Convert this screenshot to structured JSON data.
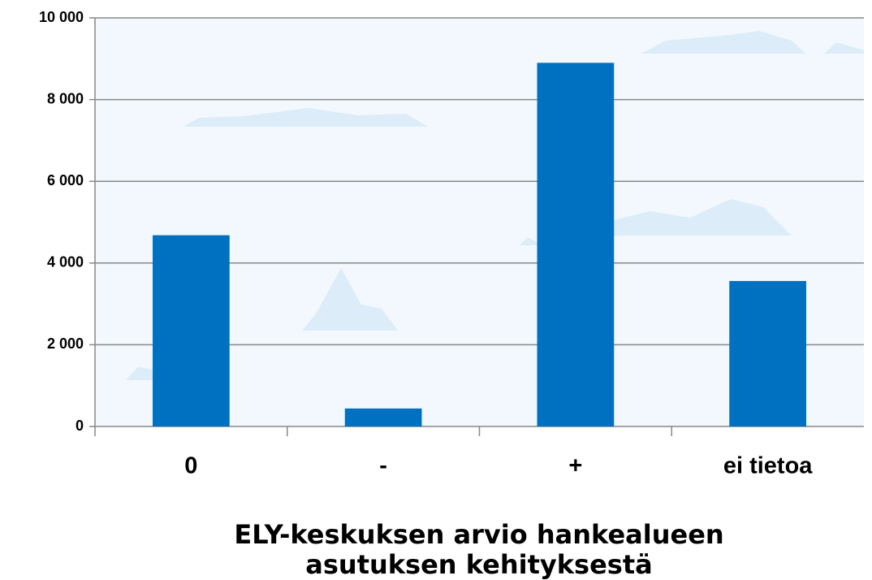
{
  "chart_data": {
    "type": "bar",
    "categories": [
      "0",
      "-",
      "+",
      "ei tietoa"
    ],
    "values": [
      4680,
      440,
      8900,
      3560
    ],
    "color": "#0070c0",
    "ylim": [
      0,
      10000
    ],
    "yticks": [
      0,
      {
        "value": 2000,
        "label": "2 000"
      },
      {
        "value": 4000,
        "label": "4 000"
      },
      {
        "value": 6000,
        "label": "6 000"
      },
      {
        "value": 8000,
        "label": "8 000"
      },
      {
        "value": 10000,
        "label": "10 000"
      }
    ],
    "grid": true,
    "xlabel": [
      "ELY-keskuksen arvio hankealueen",
      "asutuksen kehityksestä"
    ]
  }
}
